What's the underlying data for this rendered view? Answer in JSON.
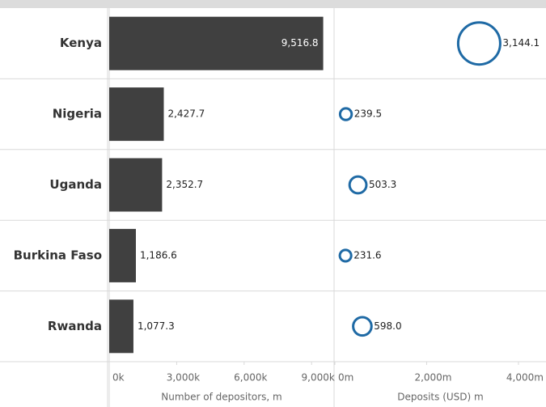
{
  "chart_data": [
    {
      "type": "bar",
      "categories": [
        "Kenya",
        "Nigeria",
        "Uganda",
        "Burkina Faso",
        "Rwanda"
      ],
      "values": [
        9516.8,
        2427.7,
        2352.7,
        1186.6,
        1077.3
      ],
      "value_labels": [
        "9,516.8",
        "2,427.7",
        "2,352.7",
        "1,186.6",
        "1,077.3"
      ],
      "color": "#404040",
      "x_label": "Number of depositors, m",
      "xlim": [
        0,
        10000
      ],
      "xticks": [
        {
          "value": 0,
          "label": "0k"
        },
        {
          "value": 3000,
          "label": "3,000k"
        },
        {
          "value": 6000,
          "label": "6,000k"
        },
        {
          "value": 9000,
          "label": "9,000k"
        }
      ]
    },
    {
      "type": "bubble",
      "categories": [
        "Kenya",
        "Nigeria",
        "Uganda",
        "Burkina Faso",
        "Rwanda"
      ],
      "values": [
        3144.1,
        239.5,
        503.3,
        231.6,
        598.0
      ],
      "value_labels": [
        "3,144.1",
        "239.5",
        "503.3",
        "231.6",
        "598.0"
      ],
      "color": "#1f6aa5",
      "x_label": "Deposits (USD) m",
      "xlim": [
        0,
        4600
      ],
      "xticks": [
        {
          "value": 0,
          "label": "0m"
        },
        {
          "value": 2000,
          "label": "2,000m"
        },
        {
          "value": 4000,
          "label": "4,000m"
        }
      ]
    }
  ]
}
